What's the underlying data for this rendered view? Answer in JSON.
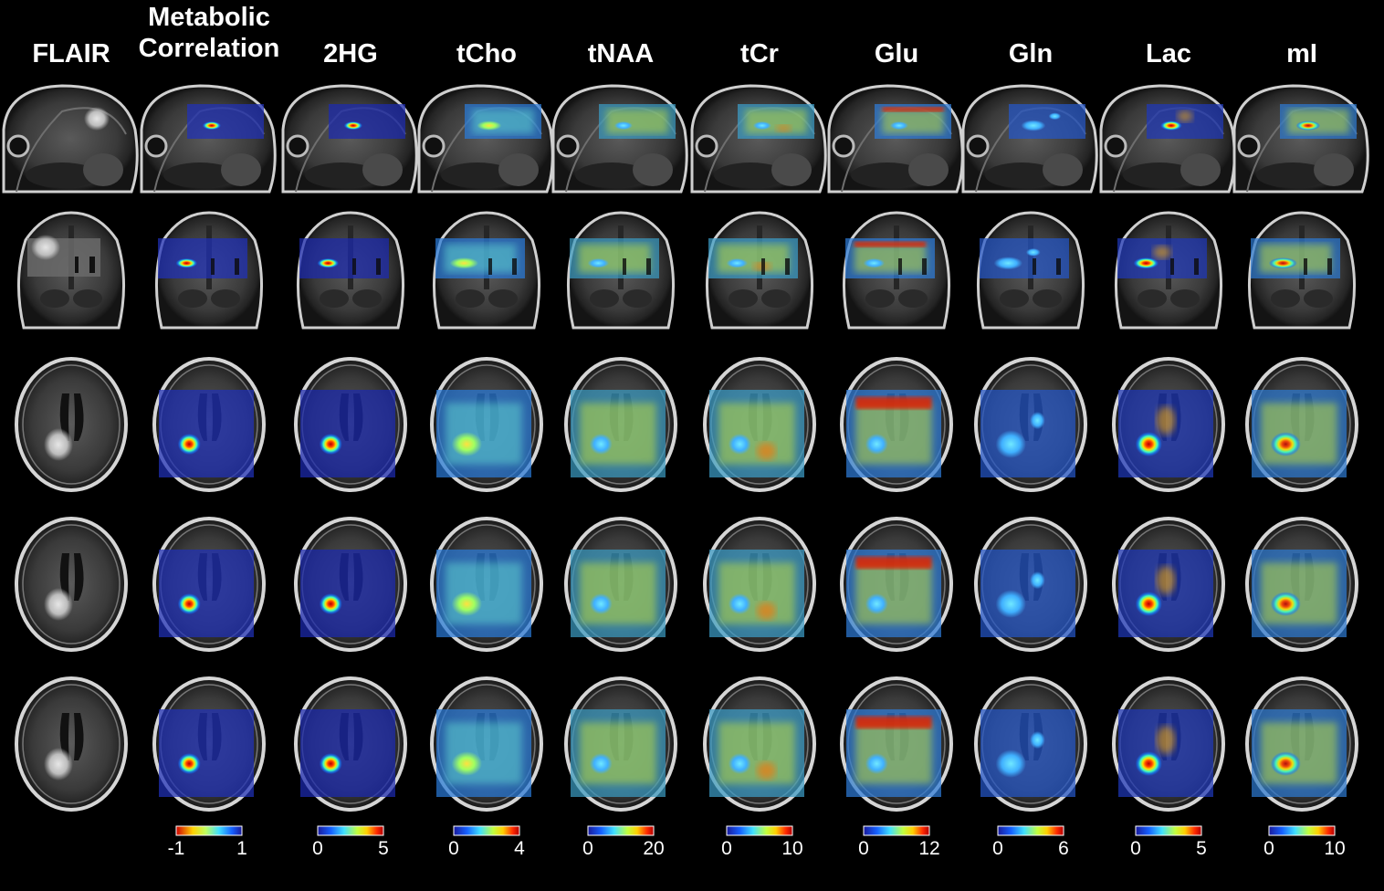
{
  "columns": [
    {
      "title": "FLAIR",
      "kind": "none"
    },
    {
      "title": "Metabolic\nCorrelation",
      "kind": "corr",
      "colorbar": {
        "min": "-1",
        "max": "1",
        "scheme": "diverging"
      }
    },
    {
      "title": "2HG",
      "kind": "2hg",
      "colorbar": {
        "min": "0",
        "max": "5",
        "scheme": "jet"
      }
    },
    {
      "title": "tCho",
      "kind": "cho",
      "colorbar": {
        "min": "0",
        "max": "4",
        "scheme": "jet"
      }
    },
    {
      "title": "tNAA",
      "kind": "naa",
      "colorbar": {
        "min": "0",
        "max": "20",
        "scheme": "jet"
      }
    },
    {
      "title": "tCr",
      "kind": "cr",
      "colorbar": {
        "min": "0",
        "max": "10",
        "scheme": "jet"
      }
    },
    {
      "title": "Glu",
      "kind": "glu",
      "colorbar": {
        "min": "0",
        "max": "12",
        "scheme": "jet"
      }
    },
    {
      "title": "Gln",
      "kind": "gln",
      "colorbar": {
        "min": "0",
        "max": "6",
        "scheme": "jet"
      }
    },
    {
      "title": "Lac",
      "kind": "lac",
      "colorbar": {
        "min": "0",
        "max": "5",
        "scheme": "jet"
      }
    },
    {
      "title": "mI",
      "kind": "mi",
      "colorbar": {
        "min": "0",
        "max": "10",
        "scheme": "jet"
      }
    }
  ],
  "rows": [
    {
      "view": "sagittal"
    },
    {
      "view": "coronal"
    },
    {
      "view": "axial"
    },
    {
      "view": "axial"
    },
    {
      "view": "axial"
    }
  ],
  "colors": {
    "background": "#000000",
    "text": "#ffffff"
  }
}
